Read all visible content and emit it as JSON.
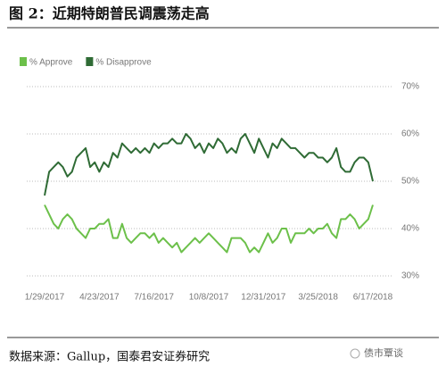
{
  "chart_data": {
    "type": "line",
    "title": "图 2：近期特朗普民调震荡走高",
    "source": "数据来源：Gallup，国泰君安证券研究",
    "watermark": "债市覃谈",
    "categories": [
      "1/29/2017",
      null,
      null,
      null,
      null,
      null,
      null,
      null,
      null,
      null,
      null,
      null,
      "4/23/2017",
      null,
      null,
      null,
      null,
      null,
      null,
      null,
      null,
      null,
      null,
      null,
      "7/16/2017",
      null,
      null,
      null,
      null,
      null,
      null,
      null,
      null,
      null,
      null,
      null,
      "10/8/2017",
      null,
      null,
      null,
      null,
      null,
      null,
      null,
      null,
      null,
      null,
      null,
      "12/31/2017",
      null,
      null,
      null,
      null,
      null,
      null,
      null,
      null,
      null,
      null,
      null,
      "3/25/2018",
      null,
      null,
      null,
      null,
      null,
      null,
      null,
      null,
      null,
      null,
      null,
      "6/17/2018"
    ],
    "series": [
      {
        "name": "% Approve",
        "color": "#6cc04a",
        "values": [
          45,
          43,
          41,
          40,
          42,
          43,
          42,
          40,
          39,
          38,
          40,
          40,
          41,
          41,
          42,
          38,
          38,
          41,
          38,
          37,
          38,
          39,
          39,
          38,
          39,
          37,
          38,
          37,
          36,
          37,
          35,
          36,
          37,
          38,
          37,
          38,
          39,
          38,
          37,
          36,
          35,
          38,
          38,
          38,
          37,
          35,
          36,
          35,
          37,
          39,
          37,
          38,
          40,
          40,
          37,
          39,
          39,
          39,
          40,
          39,
          40,
          40,
          41,
          39,
          38,
          42,
          42,
          43,
          42,
          40,
          41,
          42,
          45
        ]
      },
      {
        "name": "% Disapprove",
        "color": "#2f6b35",
        "values": [
          47,
          52,
          53,
          54,
          53,
          51,
          52,
          55,
          56,
          57,
          53,
          54,
          52,
          54,
          53,
          56,
          55,
          58,
          57,
          56,
          57,
          56,
          57,
          56,
          58,
          57,
          58,
          58,
          59,
          58,
          58,
          60,
          59,
          57,
          58,
          56,
          58,
          57,
          59,
          58,
          56,
          57,
          56,
          59,
          60,
          58,
          56,
          59,
          57,
          55,
          58,
          57,
          59,
          58,
          57,
          57,
          56,
          55,
          56,
          56,
          55,
          55,
          54,
          55,
          57,
          53,
          52,
          52,
          54,
          55,
          55,
          54,
          50
        ]
      }
    ],
    "ylim": [
      28,
      72
    ],
    "yticks": [
      {
        "value": 30,
        "label": "30%"
      },
      {
        "value": 40,
        "label": "40%"
      },
      {
        "value": 50,
        "label": "50%"
      },
      {
        "value": 60,
        "label": "60%"
      },
      {
        "value": 70,
        "label": "70%"
      }
    ],
    "grid": true
  }
}
